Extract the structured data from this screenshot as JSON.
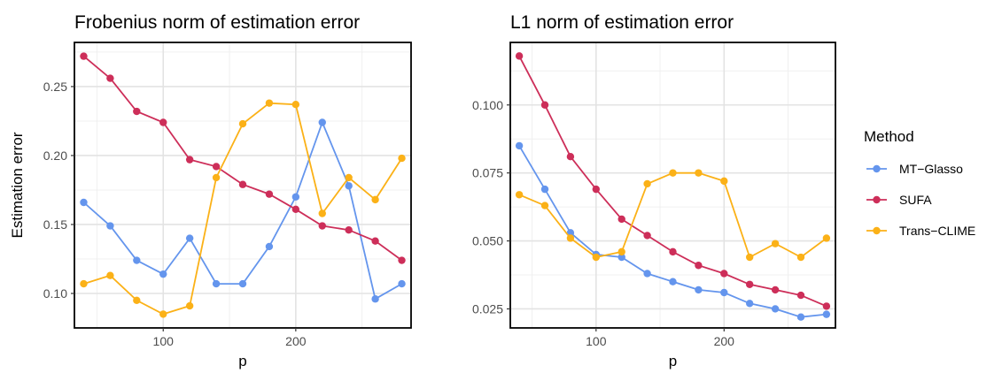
{
  "chart_data": [
    {
      "type": "line",
      "title": "Frobenius norm of estimation error",
      "xlabel": "p",
      "ylabel": "Estimation error",
      "xlim": [
        33,
        287
      ],
      "ylim": [
        0.075,
        0.282
      ],
      "x_ticks": [
        100,
        200
      ],
      "x_minor_ticks": [
        50,
        150,
        250
      ],
      "y_ticks": [
        0.1,
        0.15,
        0.2,
        0.25
      ],
      "y_tick_labels": [
        "0.10",
        "0.15",
        "0.20",
        "0.25"
      ],
      "y_minor_ticks": [
        0.125,
        0.175,
        0.225,
        0.275
      ],
      "x": [
        40,
        60,
        80,
        100,
        120,
        140,
        160,
        180,
        200,
        220,
        240,
        260,
        280
      ],
      "series": [
        {
          "name": "MT−Glasso",
          "color": "#6495ED",
          "values": [
            0.166,
            0.149,
            0.124,
            0.114,
            0.14,
            0.107,
            0.107,
            0.134,
            0.17,
            0.224,
            0.178,
            0.096,
            0.107
          ]
        },
        {
          "name": "SUFA",
          "color": "#CD2E59",
          "values": [
            0.272,
            0.256,
            0.232,
            0.224,
            0.197,
            0.192,
            0.179,
            0.172,
            0.161,
            0.149,
            0.146,
            0.138,
            0.124
          ]
        },
        {
          "name": "Trans−CLIME",
          "color": "#FBB117",
          "values": [
            0.107,
            0.113,
            0.095,
            0.085,
            0.091,
            0.184,
            0.223,
            0.238,
            0.237,
            0.158,
            0.184,
            0.168,
            0.198
          ]
        }
      ],
      "grid": true
    },
    {
      "type": "line",
      "title": "L1 norm of estimation error",
      "xlabel": "p",
      "ylabel": "",
      "xlim": [
        33,
        287
      ],
      "ylim": [
        0.018,
        0.123
      ],
      "x_ticks": [
        100,
        200
      ],
      "x_minor_ticks": [
        50,
        150,
        250
      ],
      "y_ticks": [
        0.025,
        0.05,
        0.075,
        0.1
      ],
      "y_tick_labels": [
        "0.025",
        "0.050",
        "0.075",
        "0.100"
      ],
      "y_minor_ticks": [
        0.0375,
        0.0625,
        0.0875,
        0.1125
      ],
      "x": [
        40,
        60,
        80,
        100,
        120,
        140,
        160,
        180,
        200,
        220,
        240,
        260,
        280
      ],
      "series": [
        {
          "name": "MT−Glasso",
          "color": "#6495ED",
          "values": [
            0.085,
            0.069,
            0.053,
            0.045,
            0.044,
            0.038,
            0.035,
            0.032,
            0.031,
            0.027,
            0.025,
            0.022,
            0.023
          ]
        },
        {
          "name": "SUFA",
          "color": "#CD2E59",
          "values": [
            0.118,
            0.1,
            0.081,
            0.069,
            0.058,
            0.052,
            0.046,
            0.041,
            0.038,
            0.034,
            0.032,
            0.03,
            0.026
          ]
        },
        {
          "name": "Trans−CLIME",
          "color": "#FBB117",
          "values": [
            0.067,
            0.063,
            0.051,
            0.044,
            0.046,
            0.071,
            0.075,
            0.075,
            0.072,
            0.044,
            0.049,
            0.044,
            0.051
          ]
        }
      ],
      "grid": true
    }
  ],
  "legend": {
    "title": "Method",
    "placement": "right",
    "items": [
      {
        "label": "MT−Glasso",
        "color": "#6495ED"
      },
      {
        "label": "SUFA",
        "color": "#CD2E59"
      },
      {
        "label": "Trans−CLIME",
        "color": "#FBB117"
      }
    ]
  }
}
